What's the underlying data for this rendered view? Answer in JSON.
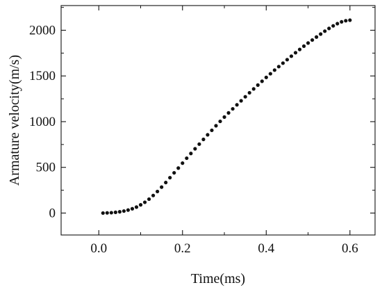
{
  "chart_data": {
    "type": "scatter",
    "title": "",
    "xlabel": "Time(ms)",
    "ylabel": "Armature velocity(m/s)",
    "xlim": [
      -0.09,
      0.66
    ],
    "ylim": [
      -240,
      2270
    ],
    "xticks": [
      {
        "value": 0.0,
        "label": "0.0"
      },
      {
        "value": 0.2,
        "label": "0.2"
      },
      {
        "value": 0.4,
        "label": "0.4"
      },
      {
        "value": 0.6,
        "label": "0.6"
      }
    ],
    "yticks": [
      {
        "value": 0,
        "label": "0"
      },
      {
        "value": 500,
        "label": "500"
      },
      {
        "value": 1000,
        "label": "1000"
      },
      {
        "value": 1500,
        "label": "1500"
      },
      {
        "value": 2000,
        "label": "2000"
      }
    ],
    "grid": false,
    "marker_color": "#111111",
    "series": [
      {
        "name": "",
        "x": [
          0.01,
          0.02,
          0.03,
          0.04,
          0.05,
          0.06,
          0.07,
          0.08,
          0.09,
          0.1,
          0.11,
          0.12,
          0.13,
          0.14,
          0.15,
          0.16,
          0.17,
          0.18,
          0.19,
          0.2,
          0.21,
          0.22,
          0.23,
          0.24,
          0.25,
          0.26,
          0.27,
          0.28,
          0.29,
          0.3,
          0.31,
          0.32,
          0.33,
          0.34,
          0.35,
          0.36,
          0.37,
          0.38,
          0.39,
          0.4,
          0.41,
          0.42,
          0.43,
          0.44,
          0.45,
          0.46,
          0.47,
          0.48,
          0.49,
          0.5,
          0.51,
          0.52,
          0.53,
          0.54,
          0.55,
          0.56,
          0.57,
          0.58,
          0.59,
          0.6
        ],
        "y": [
          0,
          2,
          4,
          8,
          14,
          22,
          33,
          47,
          65,
          90,
          118,
          152,
          192,
          236,
          284,
          334,
          387,
          440,
          492,
          546,
          600,
          652,
          703,
          754,
          806,
          856,
          905,
          955,
          1003,
          1050,
          1096,
          1140,
          1184,
          1228,
          1272,
          1316,
          1358,
          1400,
          1442,
          1484,
          1524,
          1564,
          1602,
          1640,
          1678,
          1716,
          1754,
          1790,
          1826,
          1860,
          1893,
          1926,
          1958,
          1990,
          2020,
          2048,
          2072,
          2092,
          2104,
          2110
        ]
      }
    ]
  }
}
